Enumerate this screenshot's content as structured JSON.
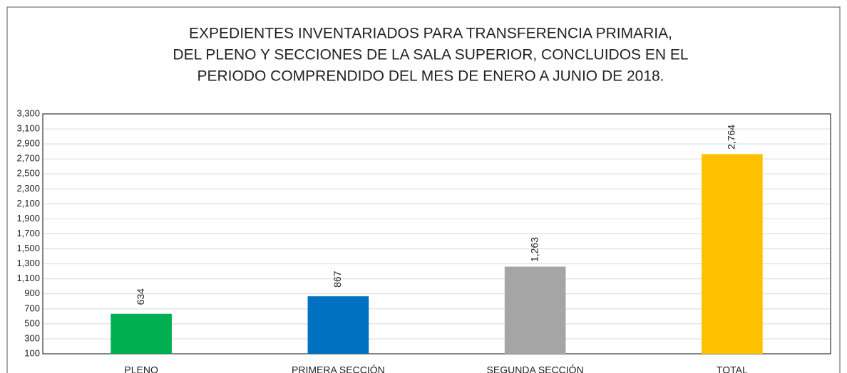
{
  "chart_data": {
    "type": "bar",
    "title": [
      "EXPEDIENTES INVENTARIADOS PARA TRANSFERENCIA PRIMARIA,",
      "DEL PLENO Y SECCIONES DE LA SALA SUPERIOR, CONCLUIDOS EN EL",
      "PERIODO COMPRENDIDO DEL MES DE ENERO A JUNIO DE 2018."
    ],
    "categories": [
      "PLENO",
      "PRIMERA SECCIÓN",
      "SEGUNDA SECCIÓN",
      "TOTAL"
    ],
    "values": [
      634,
      867,
      1263,
      2764
    ],
    "value_labels": [
      "634",
      "867",
      "1,263",
      "2,764"
    ],
    "colors": [
      "#00b050",
      "#0070c0",
      "#a5a5a5",
      "#ffc000"
    ],
    "ylim": [
      100,
      3300
    ],
    "yticks": [
      100,
      300,
      500,
      700,
      900,
      {
        "value": 1100,
        "label": "1,100"
      },
      {
        "value": 1300,
        "label": "1,300"
      },
      {
        "value": 1500,
        "label": "1,500"
      },
      {
        "value": 1700,
        "label": "1,700"
      },
      {
        "value": 1900,
        "label": "1,900"
      },
      {
        "value": 2100,
        "label": "2,100"
      },
      {
        "value": 2300,
        "label": "2,300"
      },
      {
        "value": 2500,
        "label": "2,500"
      },
      {
        "value": 2700,
        "label": "2,700"
      },
      {
        "value": 2900,
        "label": "2,900"
      },
      {
        "value": 3100,
        "label": "3,100"
      },
      {
        "value": 3300,
        "label": "3,300"
      }
    ],
    "grid": true
  }
}
